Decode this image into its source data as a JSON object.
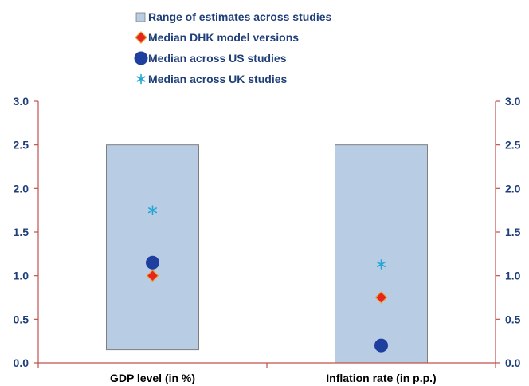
{
  "chart_data": {
    "type": "range-and-markers",
    "categories": [
      "GDP level (in %)",
      "Inflation rate (in p.p.)"
    ],
    "ylim": [
      0,
      3.0
    ],
    "yticks": [
      "0.0",
      "0.5",
      "1.0",
      "1.5",
      "2.0",
      "2.5",
      "3.0"
    ],
    "y_axes": "left-and-right",
    "grid": false,
    "legend_position": "top-center",
    "series": [
      {
        "name": "Range of estimates across studies",
        "kind": "range",
        "color": "#b8cce4",
        "border": "#7f7f7f",
        "ranges": [
          [
            0.15,
            2.5
          ],
          [
            0.0,
            2.5
          ]
        ]
      },
      {
        "name": "Median DHK model versions",
        "kind": "diamond",
        "color": "#e8251d",
        "values": [
          1.0,
          0.75
        ]
      },
      {
        "name": "Median across US studies",
        "kind": "circle",
        "color": "#1f3f9e",
        "values": [
          1.15,
          0.2
        ]
      },
      {
        "name": "Median across UK studies",
        "kind": "asterisk",
        "color": "#23a6d5",
        "values": [
          1.75,
          1.13
        ]
      }
    ]
  },
  "colors": {
    "axis": "#c0504d",
    "tick_text": "#1f3f7a",
    "category_text": "#000000"
  }
}
